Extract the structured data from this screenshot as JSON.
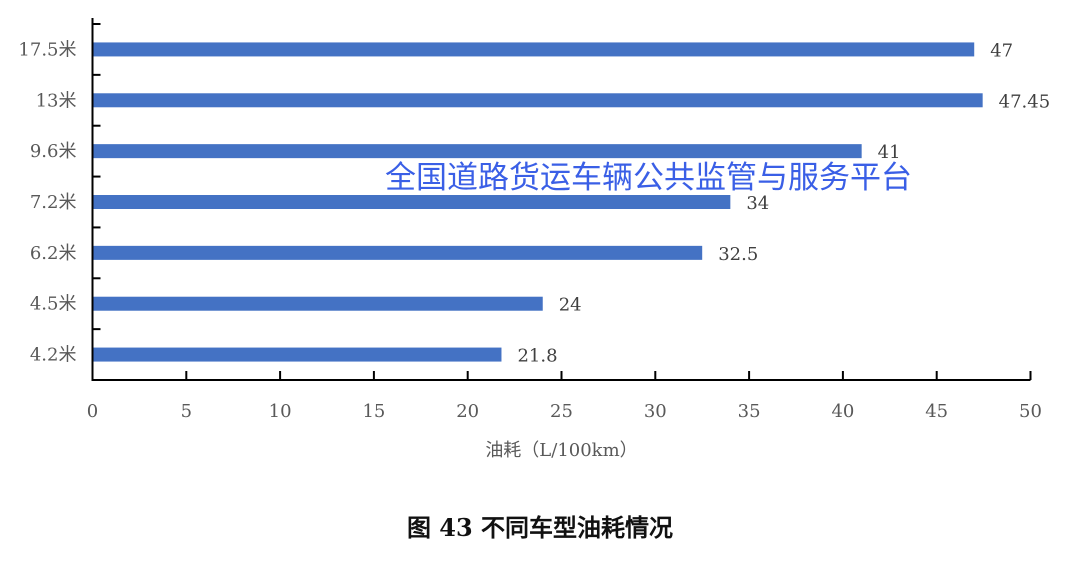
{
  "chart_data": {
    "type": "bar",
    "orientation": "horizontal",
    "categories": [
      "17.5米",
      "13米",
      "9.6米",
      "7.2米",
      "6.2米",
      "4.5米",
      "4.2米"
    ],
    "values": [
      47,
      47.45,
      41,
      34,
      32.5,
      24,
      21.8
    ],
    "data_labels": [
      "47",
      "47.45",
      "41",
      "34",
      "32.5",
      "24",
      "21.8"
    ],
    "xlabel": "油耗（L/100km）",
    "ylabel": "",
    "xlim": [
      0,
      50
    ],
    "xticks": [
      "0",
      "5",
      "10",
      "15",
      "20",
      "25",
      "30",
      "35",
      "40",
      "45",
      "50"
    ],
    "grid": false,
    "bar_color": "#4472c4",
    "caption": "图 43 不同车型油耗情况",
    "watermark": "全国道路货运车辆公共监管与服务平台"
  }
}
